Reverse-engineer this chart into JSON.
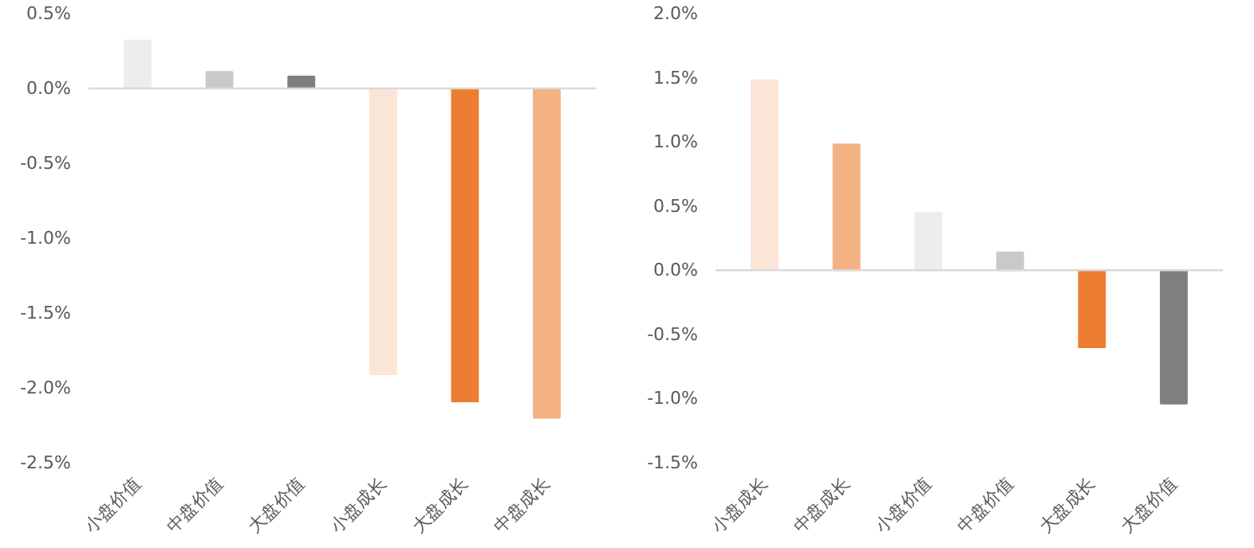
{
  "chart_data": [
    {
      "type": "bar",
      "categories": [
        "小盘价值",
        "中盘价值",
        "大盘价值",
        "小盘成长",
        "大盘成长",
        "中盘成长"
      ],
      "values": [
        0.32,
        0.11,
        0.08,
        -1.91,
        -2.09,
        -2.2
      ],
      "colors": [
        "#ededed",
        "#c9c9c9",
        "#7f7f7f",
        "#fbe5d6",
        "#ed7d31",
        "#f4b183"
      ],
      "ylim": [
        -2.5,
        0.5
      ],
      "yticks": [
        {
          "value": 0.5,
          "label": "0.5%"
        },
        {
          "value": 0,
          "label": "0.0%"
        },
        {
          "value": -0.5,
          "label": "-0.5%"
        },
        {
          "value": -1,
          "label": "-1.0%"
        },
        {
          "value": -1.5,
          "label": "-1.5%"
        },
        {
          "value": -2,
          "label": "-2.0%"
        },
        {
          "value": -2.5,
          "label": "-2.5%"
        }
      ],
      "ref_lines": [
        {
          "axis": "y",
          "value": 0,
          "color": "#d9d9d9"
        }
      ],
      "legend": false
    },
    {
      "type": "bar",
      "categories": [
        "小盘成长",
        "中盘成长",
        "小盘价值",
        "中盘价值",
        "大盘成长",
        "大盘价值"
      ],
      "values": [
        1.48,
        0.98,
        0.45,
        0.14,
        -0.6,
        -1.04
      ],
      "colors": [
        "#fbe5d6",
        "#f4b183",
        "#ededed",
        "#c9c9c9",
        "#ed7d31",
        "#7f7f7f"
      ],
      "ylim": [
        -1.5,
        2.0
      ],
      "yticks": [
        {
          "value": 2,
          "label": "2.0%"
        },
        {
          "value": 1.5,
          "label": "1.5%"
        },
        {
          "value": 1,
          "label": "1.0%"
        },
        {
          "value": 0.5,
          "label": "0.5%"
        },
        {
          "value": 0,
          "label": "0.0%"
        },
        {
          "value": -0.5,
          "label": "-0.5%"
        },
        {
          "value": -1,
          "label": "-1.0%"
        },
        {
          "value": -1.5,
          "label": "-1.5%"
        }
      ],
      "ref_lines": [
        {
          "axis": "y",
          "value": 0,
          "color": "#d9d9d9"
        }
      ],
      "legend": false
    }
  ]
}
